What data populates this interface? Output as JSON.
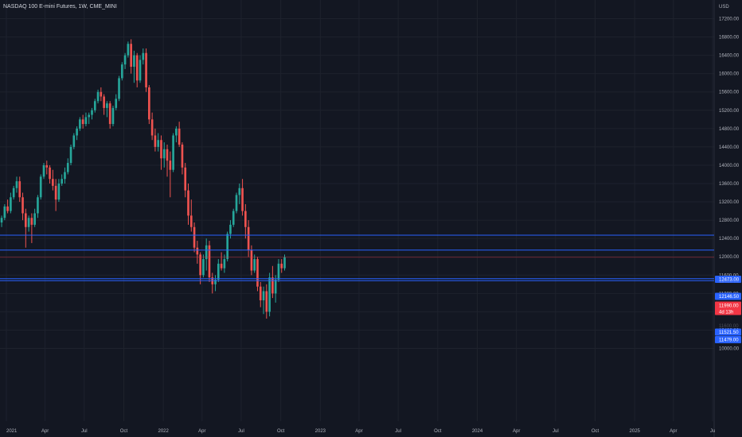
{
  "header": {
    "title": "NASDAQ 100 E-mini Futures, 1W, CME_MINI",
    "currency": "USD"
  },
  "colors": {
    "background": "#131722",
    "grid": "#1e222d",
    "up": "#26a69a",
    "down": "#ef5350",
    "level_line": "#2962ff",
    "last_price": "#f23645"
  },
  "chart_data": {
    "type": "candlestick",
    "title": "NASDAQ 100 E-mini Futures, 1W, CME_MINI",
    "ylim": [
      9900,
      17300
    ],
    "xlim": [
      "2021-01-01",
      "2025-07-01"
    ],
    "y_ticks": [
      17200,
      16800,
      16400,
      16000,
      15600,
      15200,
      14800,
      14400,
      14000,
      13600,
      13200,
      12800,
      12400,
      12000,
      11600,
      11200,
      10800,
      10400,
      10000
    ],
    "y_tick_labels": [
      "17200.00",
      "16800.00",
      "16400.00",
      "16000.00",
      "15600.00",
      "15200.00",
      "14800.00",
      "14400.00",
      "14000.00",
      "13600.00",
      "13200.00",
      "12800.00",
      "12400.00",
      "12000.00",
      "11600.00",
      "11200.00",
      "10800.00",
      "10400.00",
      "10000.00"
    ],
    "x_ticks": [
      {
        "date": "2021-01-01",
        "label": "2021"
      },
      {
        "date": "2021-04-01",
        "label": "Apr"
      },
      {
        "date": "2021-07-01",
        "label": "Jul"
      },
      {
        "date": "2021-10-01",
        "label": "Oct"
      },
      {
        "date": "2022-01-01",
        "label": "2022"
      },
      {
        "date": "2022-04-01",
        "label": "Apr"
      },
      {
        "date": "2022-07-01",
        "label": "Jul"
      },
      {
        "date": "2022-10-01",
        "label": "Oct"
      },
      {
        "date": "2023-01-01",
        "label": "2023"
      },
      {
        "date": "2023-04-01",
        "label": "Apr"
      },
      {
        "date": "2023-07-01",
        "label": "Jul"
      },
      {
        "date": "2023-10-01",
        "label": "Oct"
      },
      {
        "date": "2024-01-01",
        "label": "2024"
      },
      {
        "date": "2024-04-01",
        "label": "Apr"
      },
      {
        "date": "2024-07-01",
        "label": "Jul"
      },
      {
        "date": "2024-10-01",
        "label": "Oct"
      },
      {
        "date": "2025-01-01",
        "label": "2025"
      },
      {
        "date": "2025-04-01",
        "label": "Apr"
      },
      {
        "date": "2025-07-01",
        "label": "Ju"
      }
    ],
    "start_date": "2020-11-30",
    "interval_days": 7,
    "ohlc": [
      [
        12300,
        12650,
        12250,
        12550
      ],
      [
        12550,
        12650,
        12350,
        12450
      ],
      [
        12450,
        12800,
        12400,
        12750
      ],
      [
        12750,
        12900,
        12650,
        12850
      ],
      [
        12850,
        13150,
        12800,
        13100
      ],
      [
        13100,
        13250,
        12950,
        13000
      ],
      [
        13000,
        13400,
        12950,
        13300
      ],
      [
        13300,
        13550,
        13250,
        13500
      ],
      [
        13500,
        13750,
        13400,
        13650
      ],
      [
        13650,
        13750,
        13200,
        13300
      ],
      [
        13300,
        13400,
        12800,
        12950
      ],
      [
        12950,
        13050,
        12200,
        12650
      ],
      [
        12650,
        12900,
        12550,
        12850
      ],
      [
        12850,
        12950,
        12300,
        12700
      ],
      [
        12700,
        13050,
        12650,
        12950
      ],
      [
        12950,
        13350,
        12850,
        13300
      ],
      [
        13300,
        13800,
        13250,
        13750
      ],
      [
        13750,
        14050,
        13700,
        14000
      ],
      [
        14000,
        14100,
        13800,
        13950
      ],
      [
        13950,
        14000,
        13600,
        13700
      ],
      [
        13700,
        13900,
        13450,
        13550
      ],
      [
        13550,
        13700,
        13000,
        13250
      ],
      [
        13250,
        13700,
        13200,
        13600
      ],
      [
        13600,
        13800,
        13550,
        13700
      ],
      [
        13700,
        13950,
        13600,
        13850
      ],
      [
        13850,
        14150,
        13800,
        14050
      ],
      [
        14050,
        14450,
        14000,
        14400
      ],
      [
        14400,
        14700,
        14350,
        14650
      ],
      [
        14650,
        14850,
        14550,
        14800
      ],
      [
        14800,
        15050,
        14750,
        15000
      ],
      [
        15000,
        15100,
        14800,
        14900
      ],
      [
        14900,
        15150,
        14850,
        15050
      ],
      [
        15050,
        15150,
        14900,
        15100
      ],
      [
        15100,
        15250,
        15000,
        15200
      ],
      [
        15200,
        15450,
        15150,
        15400
      ],
      [
        15400,
        15650,
        15350,
        15600
      ],
      [
        15600,
        15700,
        15400,
        15500
      ],
      [
        15500,
        15550,
        15100,
        15250
      ],
      [
        15250,
        15400,
        15050,
        15350
      ],
      [
        15350,
        15400,
        14800,
        14900
      ],
      [
        14900,
        15300,
        14850,
        15250
      ],
      [
        15250,
        15550,
        15200,
        15450
      ],
      [
        15450,
        15950,
        15400,
        15900
      ],
      [
        15900,
        16250,
        15850,
        16200
      ],
      [
        16200,
        16450,
        16100,
        16400
      ],
      [
        16400,
        16700,
        16350,
        16650
      ],
      [
        16650,
        16750,
        16000,
        16150
      ],
      [
        16150,
        16500,
        15800,
        16400
      ],
      [
        16400,
        16450,
        15700,
        15850
      ],
      [
        15850,
        16400,
        15800,
        16300
      ],
      [
        16300,
        16550,
        16200,
        16450
      ],
      [
        16450,
        16550,
        15600,
        15700
      ],
      [
        15700,
        15750,
        14900,
        15000
      ],
      [
        15000,
        15150,
        14550,
        14650
      ],
      [
        14650,
        14800,
        14300,
        14400
      ],
      [
        14400,
        14700,
        14300,
        14550
      ],
      [
        14550,
        14650,
        13900,
        14150
      ],
      [
        14150,
        14500,
        13950,
        14350
      ],
      [
        14350,
        14450,
        13750,
        14100
      ],
      [
        14100,
        14300,
        13300,
        13900
      ],
      [
        13900,
        14700,
        13850,
        14650
      ],
      [
        14650,
        14850,
        14500,
        14800
      ],
      [
        14800,
        14950,
        14400,
        14450
      ],
      [
        14450,
        14500,
        13800,
        13950
      ],
      [
        13950,
        14050,
        13300,
        13450
      ],
      [
        13450,
        13600,
        12700,
        12900
      ],
      [
        12900,
        13250,
        12550,
        12650
      ],
      [
        12650,
        12750,
        12100,
        12200
      ],
      [
        12200,
        12350,
        11850,
        12050
      ],
      [
        12050,
        12100,
        11400,
        11600
      ],
      [
        11600,
        12050,
        11550,
        11950
      ],
      [
        11950,
        12400,
        11700,
        12250
      ],
      [
        12250,
        12350,
        11450,
        11550
      ],
      [
        11550,
        11650,
        11200,
        11400
      ],
      [
        11400,
        11600,
        11250,
        11500
      ],
      [
        11500,
        11950,
        11450,
        11850
      ],
      [
        11850,
        12100,
        11700,
        11750
      ],
      [
        11750,
        12050,
        11650,
        11950
      ],
      [
        11950,
        12550,
        11900,
        12500
      ],
      [
        12500,
        12800,
        12400,
        12700
      ],
      [
        12700,
        13050,
        12650,
        13000
      ],
      [
        13000,
        13400,
        12950,
        13350
      ],
      [
        13350,
        13600,
        13150,
        13500
      ],
      [
        13500,
        13700,
        12900,
        13000
      ],
      [
        13000,
        13150,
        12400,
        12650
      ],
      [
        12650,
        12800,
        12000,
        12150
      ],
      [
        12150,
        12250,
        11600,
        11700
      ],
      [
        11700,
        12050,
        11650,
        11950
      ],
      [
        11950,
        12000,
        11250,
        11350
      ],
      [
        11350,
        11450,
        10900,
        11050
      ],
      [
        11050,
        11350,
        10750,
        11250
      ],
      [
        11250,
        11400,
        10650,
        10800
      ],
      [
        10800,
        11650,
        10700,
        11550
      ],
      [
        11550,
        11800,
        11100,
        11200
      ],
      [
        11200,
        11600,
        11000,
        11500
      ],
      [
        11500,
        11950,
        11450,
        11850
      ],
      [
        11850,
        11950,
        11650,
        11750
      ],
      [
        11750,
        12050,
        11700,
        11990
      ]
    ],
    "levels": [
      {
        "value": 12473.0,
        "label": "12473.00"
      },
      {
        "value": 12146.5,
        "label": "12146.50"
      },
      {
        "value": 11521.5,
        "label": "11521.50"
      },
      {
        "value": 11479.0,
        "label": "11479.00"
      }
    ],
    "last_price": {
      "value": 11990.0,
      "label": "11990.00",
      "countdown": "4d 13h"
    },
    "hidden_axis_labels": [
      "12400.00",
      "11600.00"
    ]
  }
}
